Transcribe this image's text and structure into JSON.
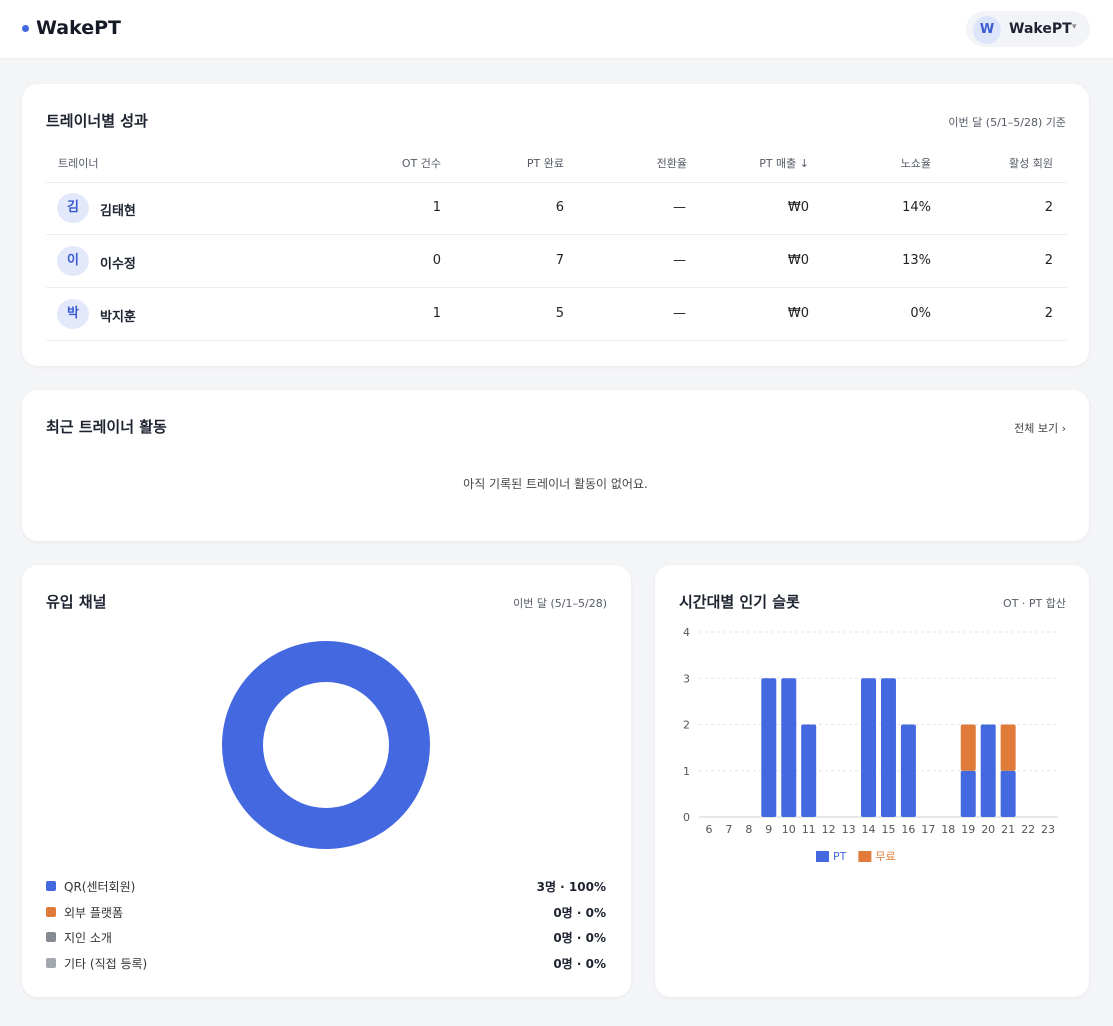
{
  "header": {
    "brand": "WakePT",
    "avatar": "W",
    "user": "WakePT"
  },
  "performance": {
    "title": "트레이너별 성과",
    "period": "이번 달 (5/1–5/28) 기준",
    "columns": [
      "트레이너",
      "OT 건수",
      "PT 완료",
      "전환율",
      "PT 매출 ↓",
      "노쇼율",
      "활성 회원"
    ],
    "rows": [
      {
        "avatar": "김",
        "name": "김태현",
        "cells": [
          "1",
          "6",
          "—",
          "₩0",
          "14%",
          "2"
        ]
      },
      {
        "avatar": "이",
        "name": "이수정",
        "cells": [
          "0",
          "7",
          "—",
          "₩0",
          "13%",
          "2"
        ]
      },
      {
        "avatar": "박",
        "name": "박지훈",
        "cells": [
          "1",
          "5",
          "—",
          "₩0",
          "0%",
          "2"
        ]
      }
    ]
  },
  "activity": {
    "title": "최근 트레이너 활동",
    "link": "전체 보기 ›",
    "empty": "아직 기록된 트레이너 활동이 없어요."
  },
  "channels": {
    "title": "유입 채널",
    "period": "이번 달 (5/1–5/28)",
    "chart_data": {
      "type": "pie",
      "categories": [
        "QR(센터회원)",
        "외부 플랫폼",
        "지인 소개",
        "기타 (직접 등록)"
      ],
      "values": [
        3,
        0,
        0,
        0
      ],
      "value_labels": [
        "3명 · 100%",
        "0명 · 0%",
        "0명 · 0%",
        "0명 · 0%"
      ],
      "colors": [
        "#4468e0",
        "#e07b39",
        "#868a92",
        "#a3a7ae"
      ]
    }
  },
  "slots": {
    "title": "시간대별 인기 슬롯",
    "note": "OT · PT 합산",
    "chart_data": {
      "type": "bar",
      "stacked": true,
      "categories": [
        "6",
        "7",
        "8",
        "9",
        "10",
        "11",
        "12",
        "13",
        "14",
        "15",
        "16",
        "17",
        "18",
        "19",
        "20",
        "21",
        "22",
        "23"
      ],
      "series": [
        {
          "name": "PT",
          "color": "#4468e0",
          "values": [
            0,
            0,
            0,
            3,
            3,
            2,
            0,
            0,
            3,
            3,
            2,
            0,
            0,
            1,
            2,
            1,
            0,
            0
          ]
        },
        {
          "name": "무료",
          "color": "#e07b39",
          "values": [
            0,
            0,
            0,
            0,
            0,
            0,
            0,
            0,
            0,
            0,
            0,
            0,
            0,
            1,
            0,
            1,
            0,
            0
          ]
        }
      ],
      "ylim": [
        0,
        4
      ],
      "yticks": [
        0,
        1,
        2,
        3,
        4
      ],
      "grid": true
    }
  }
}
